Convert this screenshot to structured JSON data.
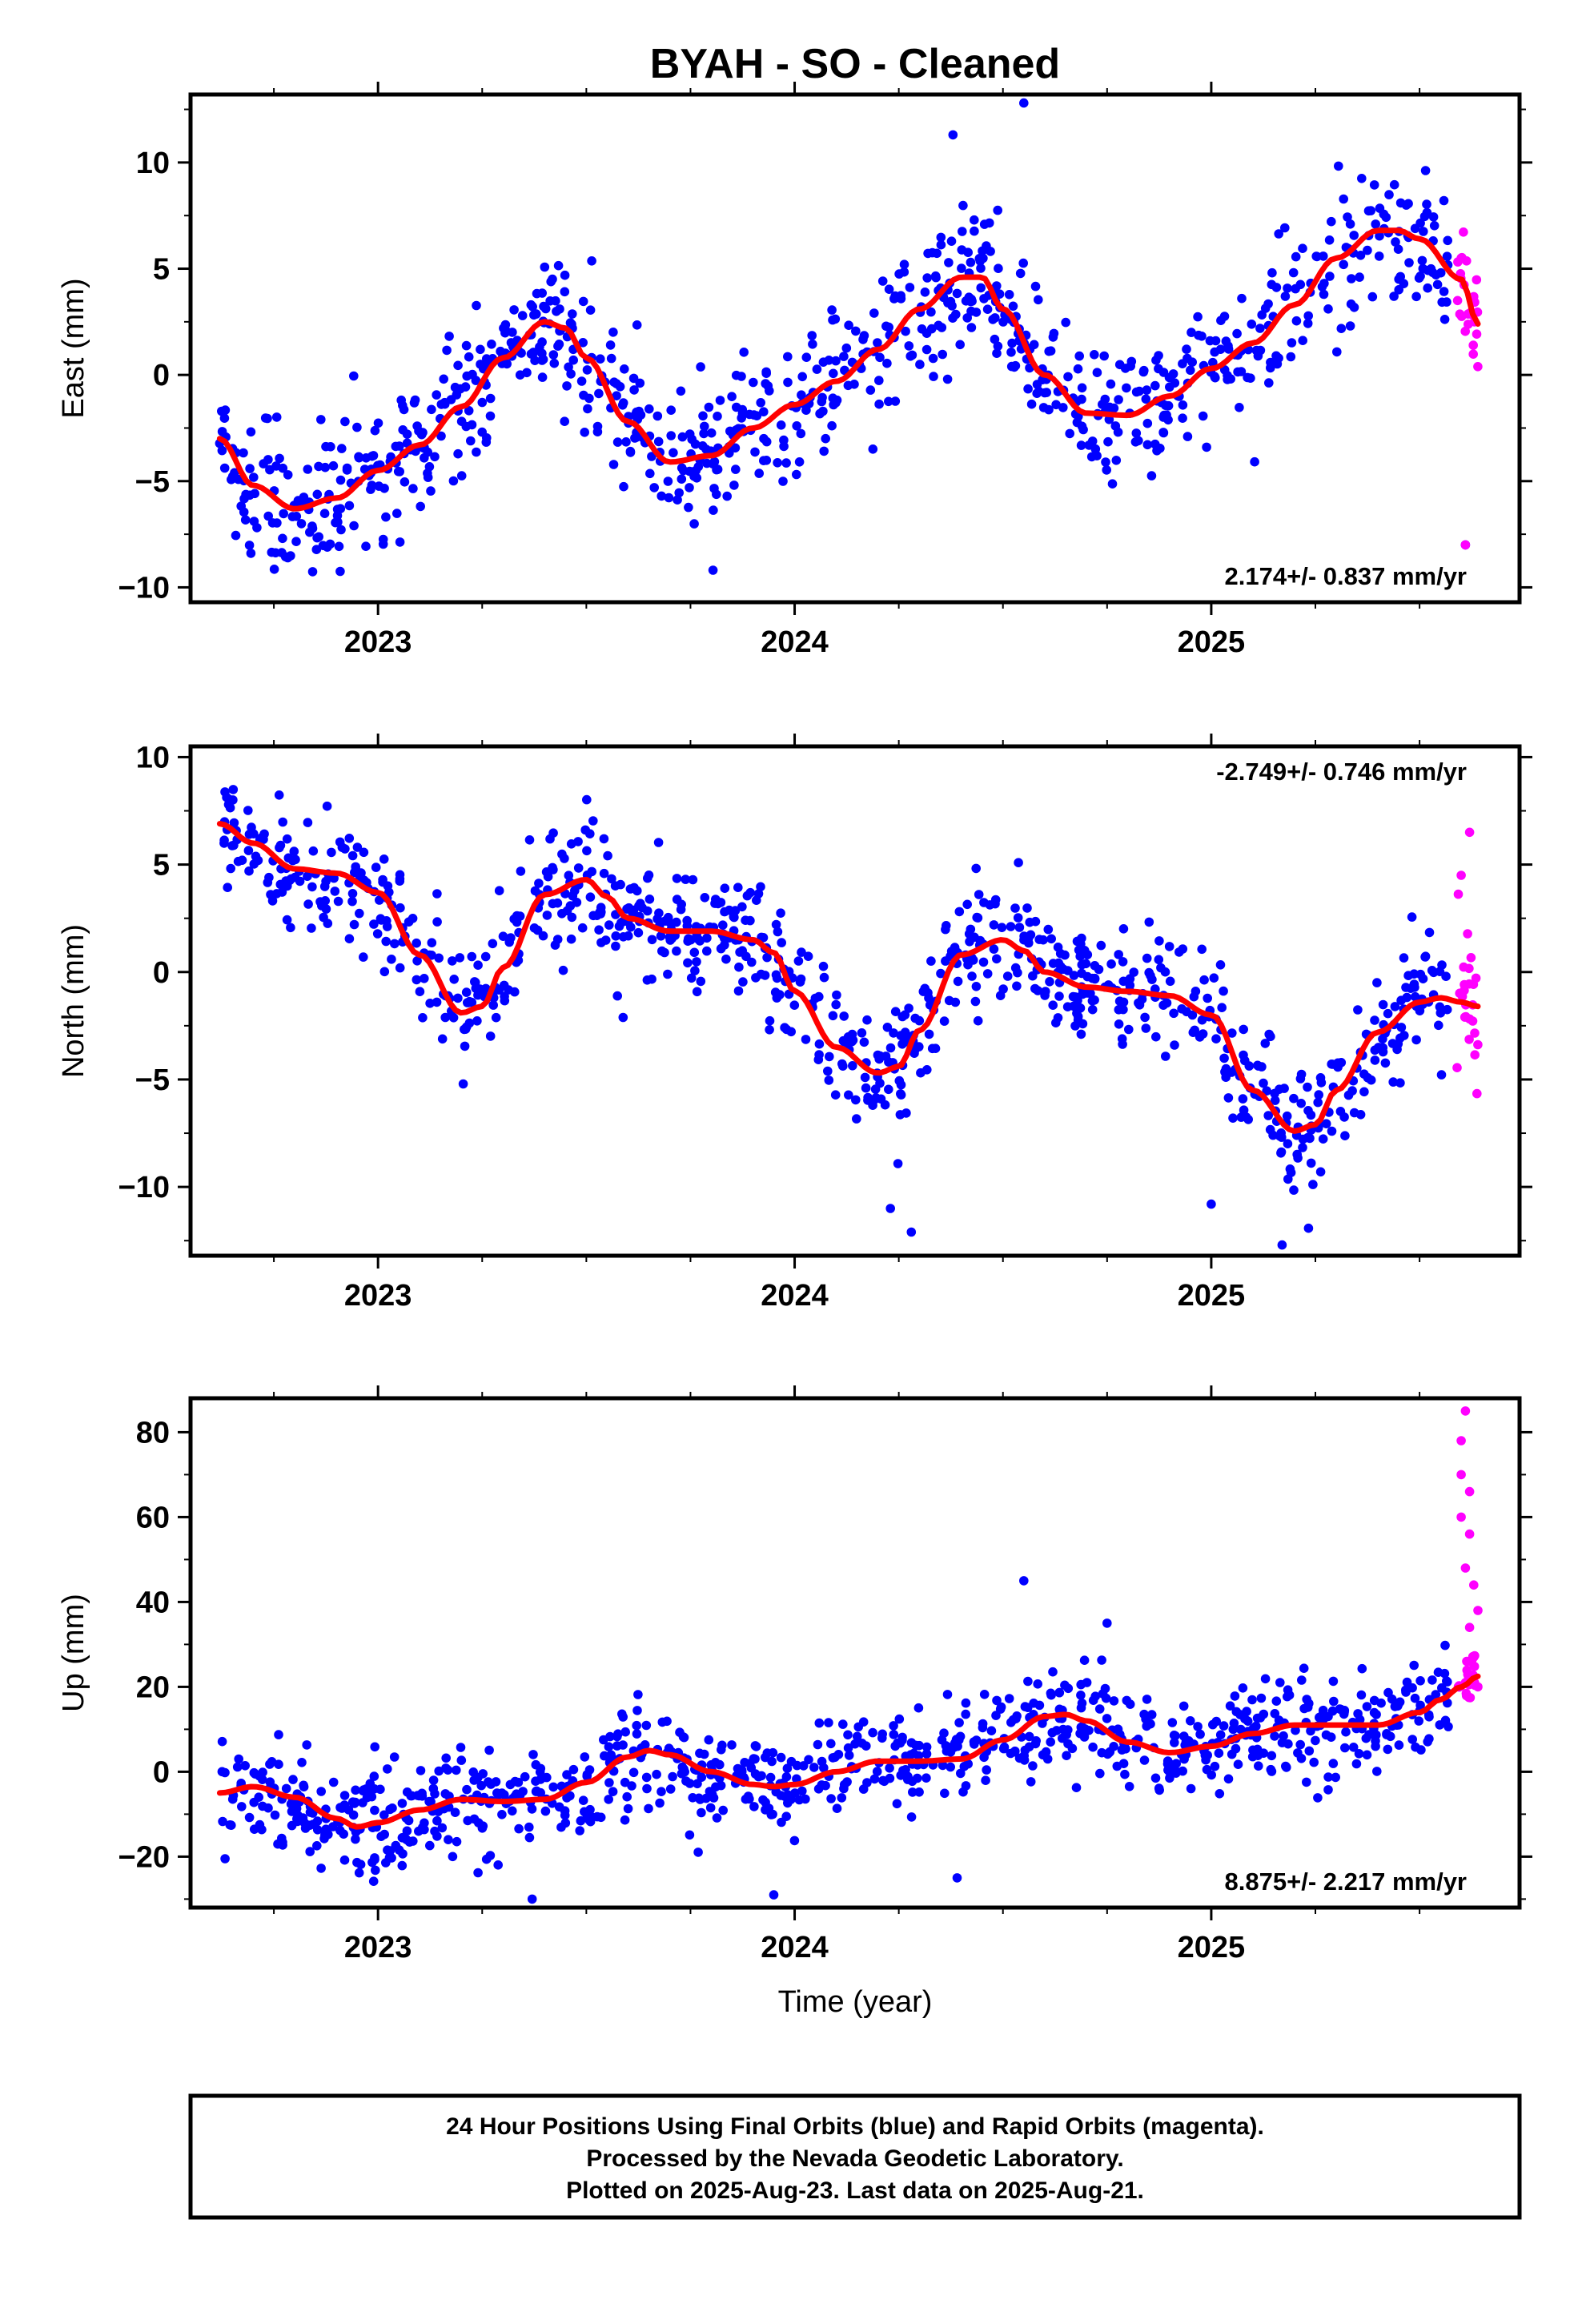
{
  "title": "BYAH  - SO - Cleaned",
  "xlabel": "Time (year)",
  "footer": [
    "24 Hour Positions Using Final Orbits (blue) and Rapid Orbits (magenta).",
    "Processed by the Nevada Geodetic Laboratory.",
    "Plotted on 2025-Aug-23. Last data on 2025-Aug-21."
  ],
  "colors": {
    "final_orbits": "#0000ff",
    "rapid_orbits": "#ff00ff",
    "trend": "#ff0000"
  },
  "chart_data": [
    {
      "type": "scatter",
      "ylabel": "East (mm)",
      "rate_label": "2.174+/- 0.837 mm/yr",
      "rate_position": "bottom-right",
      "xlim": [
        2022.55,
        2025.74
      ],
      "ylim": [
        -10.7,
        13.2
      ],
      "xticks": [
        2023,
        2024,
        2025
      ],
      "yticks": [
        -10,
        -5,
        0,
        5,
        10
      ],
      "grid": false,
      "fit_curve": {
        "x": [
          2022.62,
          2022.7,
          2022.8,
          2022.9,
          2023.0,
          2023.1,
          2023.2,
          2023.3,
          2023.4,
          2023.45,
          2023.5,
          2023.6,
          2023.7,
          2023.8,
          2023.9,
          2024.0,
          2024.1,
          2024.2,
          2024.3,
          2024.4,
          2024.45,
          2024.5,
          2024.6,
          2024.7,
          2024.8,
          2024.9,
          2025.0,
          2025.1,
          2025.2,
          2025.3,
          2025.4,
          2025.45,
          2025.5,
          2025.6,
          2025.64
        ],
        "y": [
          -3.0,
          -5.2,
          -6.3,
          -5.8,
          -4.5,
          -3.3,
          -1.5,
          0.8,
          2.5,
          2.2,
          0.8,
          -2.2,
          -4.1,
          -3.8,
          -2.5,
          -1.4,
          -0.3,
          1.2,
          3.1,
          4.6,
          4.6,
          3.1,
          0.0,
          -1.8,
          -1.9,
          -1.0,
          0.3,
          1.5,
          3.3,
          5.5,
          6.8,
          6.8,
          6.4,
          4.5,
          2.4
        ]
      },
      "final_orbits": {
        "x_start": 2022.62,
        "x_end": 2025.57,
        "count": 900,
        "noise": 1.6,
        "outliers": [
          [
            2024.55,
            12.8
          ],
          [
            2024.38,
            11.3
          ],
          [
            2025.61,
            -8.0
          ]
        ]
      },
      "rapid_orbits": {
        "x_start": 2025.59,
        "x_end": 2025.64,
        "count": 24,
        "noise": 1.5,
        "outliers": [
          [
            2025.61,
            -8.0
          ],
          [
            2025.6,
            5.5
          ]
        ]
      }
    },
    {
      "type": "scatter",
      "ylabel": "North (mm)",
      "rate_label": "-2.749+/- 0.746 mm/yr",
      "rate_position": "top-right",
      "xlim": [
        2022.55,
        2025.74
      ],
      "ylim": [
        -13.2,
        10.5
      ],
      "xticks": [
        2023,
        2024,
        2025
      ],
      "yticks": [
        -10,
        -5,
        0,
        5,
        10
      ],
      "grid": false,
      "fit_curve": {
        "x": [
          2022.62,
          2022.7,
          2022.8,
          2022.9,
          2023.0,
          2023.1,
          2023.2,
          2023.25,
          2023.3,
          2023.4,
          2023.5,
          2023.55,
          2023.6,
          2023.7,
          2023.8,
          2023.9,
          2023.95,
          2024.0,
          2024.1,
          2024.2,
          2024.25,
          2024.3,
          2024.4,
          2024.5,
          2024.55,
          2024.6,
          2024.7,
          2024.8,
          2024.9,
          2025.0,
          2025.1,
          2025.2,
          2025.25,
          2025.3,
          2025.4,
          2025.5,
          2025.55,
          2025.6,
          2025.64
        ],
        "y": [
          6.9,
          6.0,
          4.8,
          4.6,
          3.7,
          0.8,
          -1.9,
          -1.6,
          0.2,
          3.6,
          4.3,
          3.5,
          2.5,
          1.9,
          1.9,
          1.5,
          0.9,
          -0.9,
          -3.5,
          -4.7,
          -4.4,
          -2.7,
          0.8,
          1.5,
          1.0,
          0.0,
          -0.7,
          -0.9,
          -1.1,
          -2.0,
          -5.5,
          -7.4,
          -7.1,
          -5.5,
          -2.8,
          -1.4,
          -1.2,
          -1.4,
          -1.6
        ]
      },
      "final_orbits": {
        "x_start": 2022.62,
        "x_end": 2025.57,
        "count": 900,
        "noise": 1.5,
        "outliers": [
          [
            2024.28,
            -12.1
          ],
          [
            2025.17,
            -12.7
          ],
          [
            2024.23,
            -11.0
          ],
          [
            2025.0,
            -10.8
          ]
        ]
      },
      "rapid_orbits": {
        "x_start": 2025.59,
        "x_end": 2025.64,
        "count": 24,
        "noise": 2.0,
        "outliers": [
          [
            2025.62,
            6.5
          ],
          [
            2025.6,
            4.5
          ]
        ]
      }
    },
    {
      "type": "scatter",
      "ylabel": "Up (mm)",
      "rate_label": "8.875+/- 2.217 mm/yr",
      "rate_position": "bottom-right",
      "xlim": [
        2022.55,
        2025.74
      ],
      "ylim": [
        -32,
        88
      ],
      "xticks": [
        2023,
        2024,
        2025
      ],
      "yticks": [
        -20,
        0,
        20,
        40,
        60,
        80
      ],
      "grid": false,
      "fit_curve": {
        "x": [
          2022.62,
          2022.7,
          2022.8,
          2022.9,
          2022.95,
          2023.0,
          2023.1,
          2023.2,
          2023.3,
          2023.4,
          2023.5,
          2023.6,
          2023.65,
          2023.7,
          2023.8,
          2023.9,
          2023.95,
          2024.0,
          2024.1,
          2024.2,
          2024.3,
          2024.4,
          2024.5,
          2024.6,
          2024.65,
          2024.7,
          2024.8,
          2024.9,
          2025.0,
          2025.1,
          2025.2,
          2025.3,
          2025.4,
          2025.5,
          2025.55,
          2025.6,
          2025.64
        ],
        "y": [
          -5,
          -3.5,
          -6,
          -11,
          -13,
          -12,
          -9,
          -6.5,
          -7,
          -6.5,
          -2.5,
          3.5,
          5,
          4,
          0,
          -3,
          -3.5,
          -3,
          0,
          2.5,
          2.5,
          3,
          7.5,
          13,
          13.5,
          12,
          7,
          4.5,
          6,
          9,
          11,
          11,
          11,
          14,
          17,
          20,
          22.5
        ]
      },
      "final_orbits": {
        "x_start": 2022.62,
        "x_end": 2025.57,
        "count": 900,
        "noise": 6.0,
        "outliers": [
          [
            2024.55,
            45.0
          ],
          [
            2023.37,
            -30.0
          ],
          [
            2023.95,
            -29.0
          ],
          [
            2024.39,
            -25.0
          ],
          [
            2024.75,
            35.0
          ]
        ]
      },
      "rapid_orbits": {
        "x_start": 2025.59,
        "x_end": 2025.64,
        "count": 26,
        "noise": 3.0,
        "outliers": [
          [
            2025.61,
            85.0
          ],
          [
            2025.6,
            78.0
          ],
          [
            2025.6,
            70.0
          ],
          [
            2025.62,
            66.0
          ],
          [
            2025.6,
            60.0
          ],
          [
            2025.62,
            56.0
          ],
          [
            2025.61,
            48.0
          ],
          [
            2025.63,
            44.0
          ],
          [
            2025.64,
            38.0
          ],
          [
            2025.62,
            34.0
          ],
          [
            2025.63,
            27.0
          ],
          [
            2025.64,
            20.0
          ]
        ]
      }
    }
  ]
}
